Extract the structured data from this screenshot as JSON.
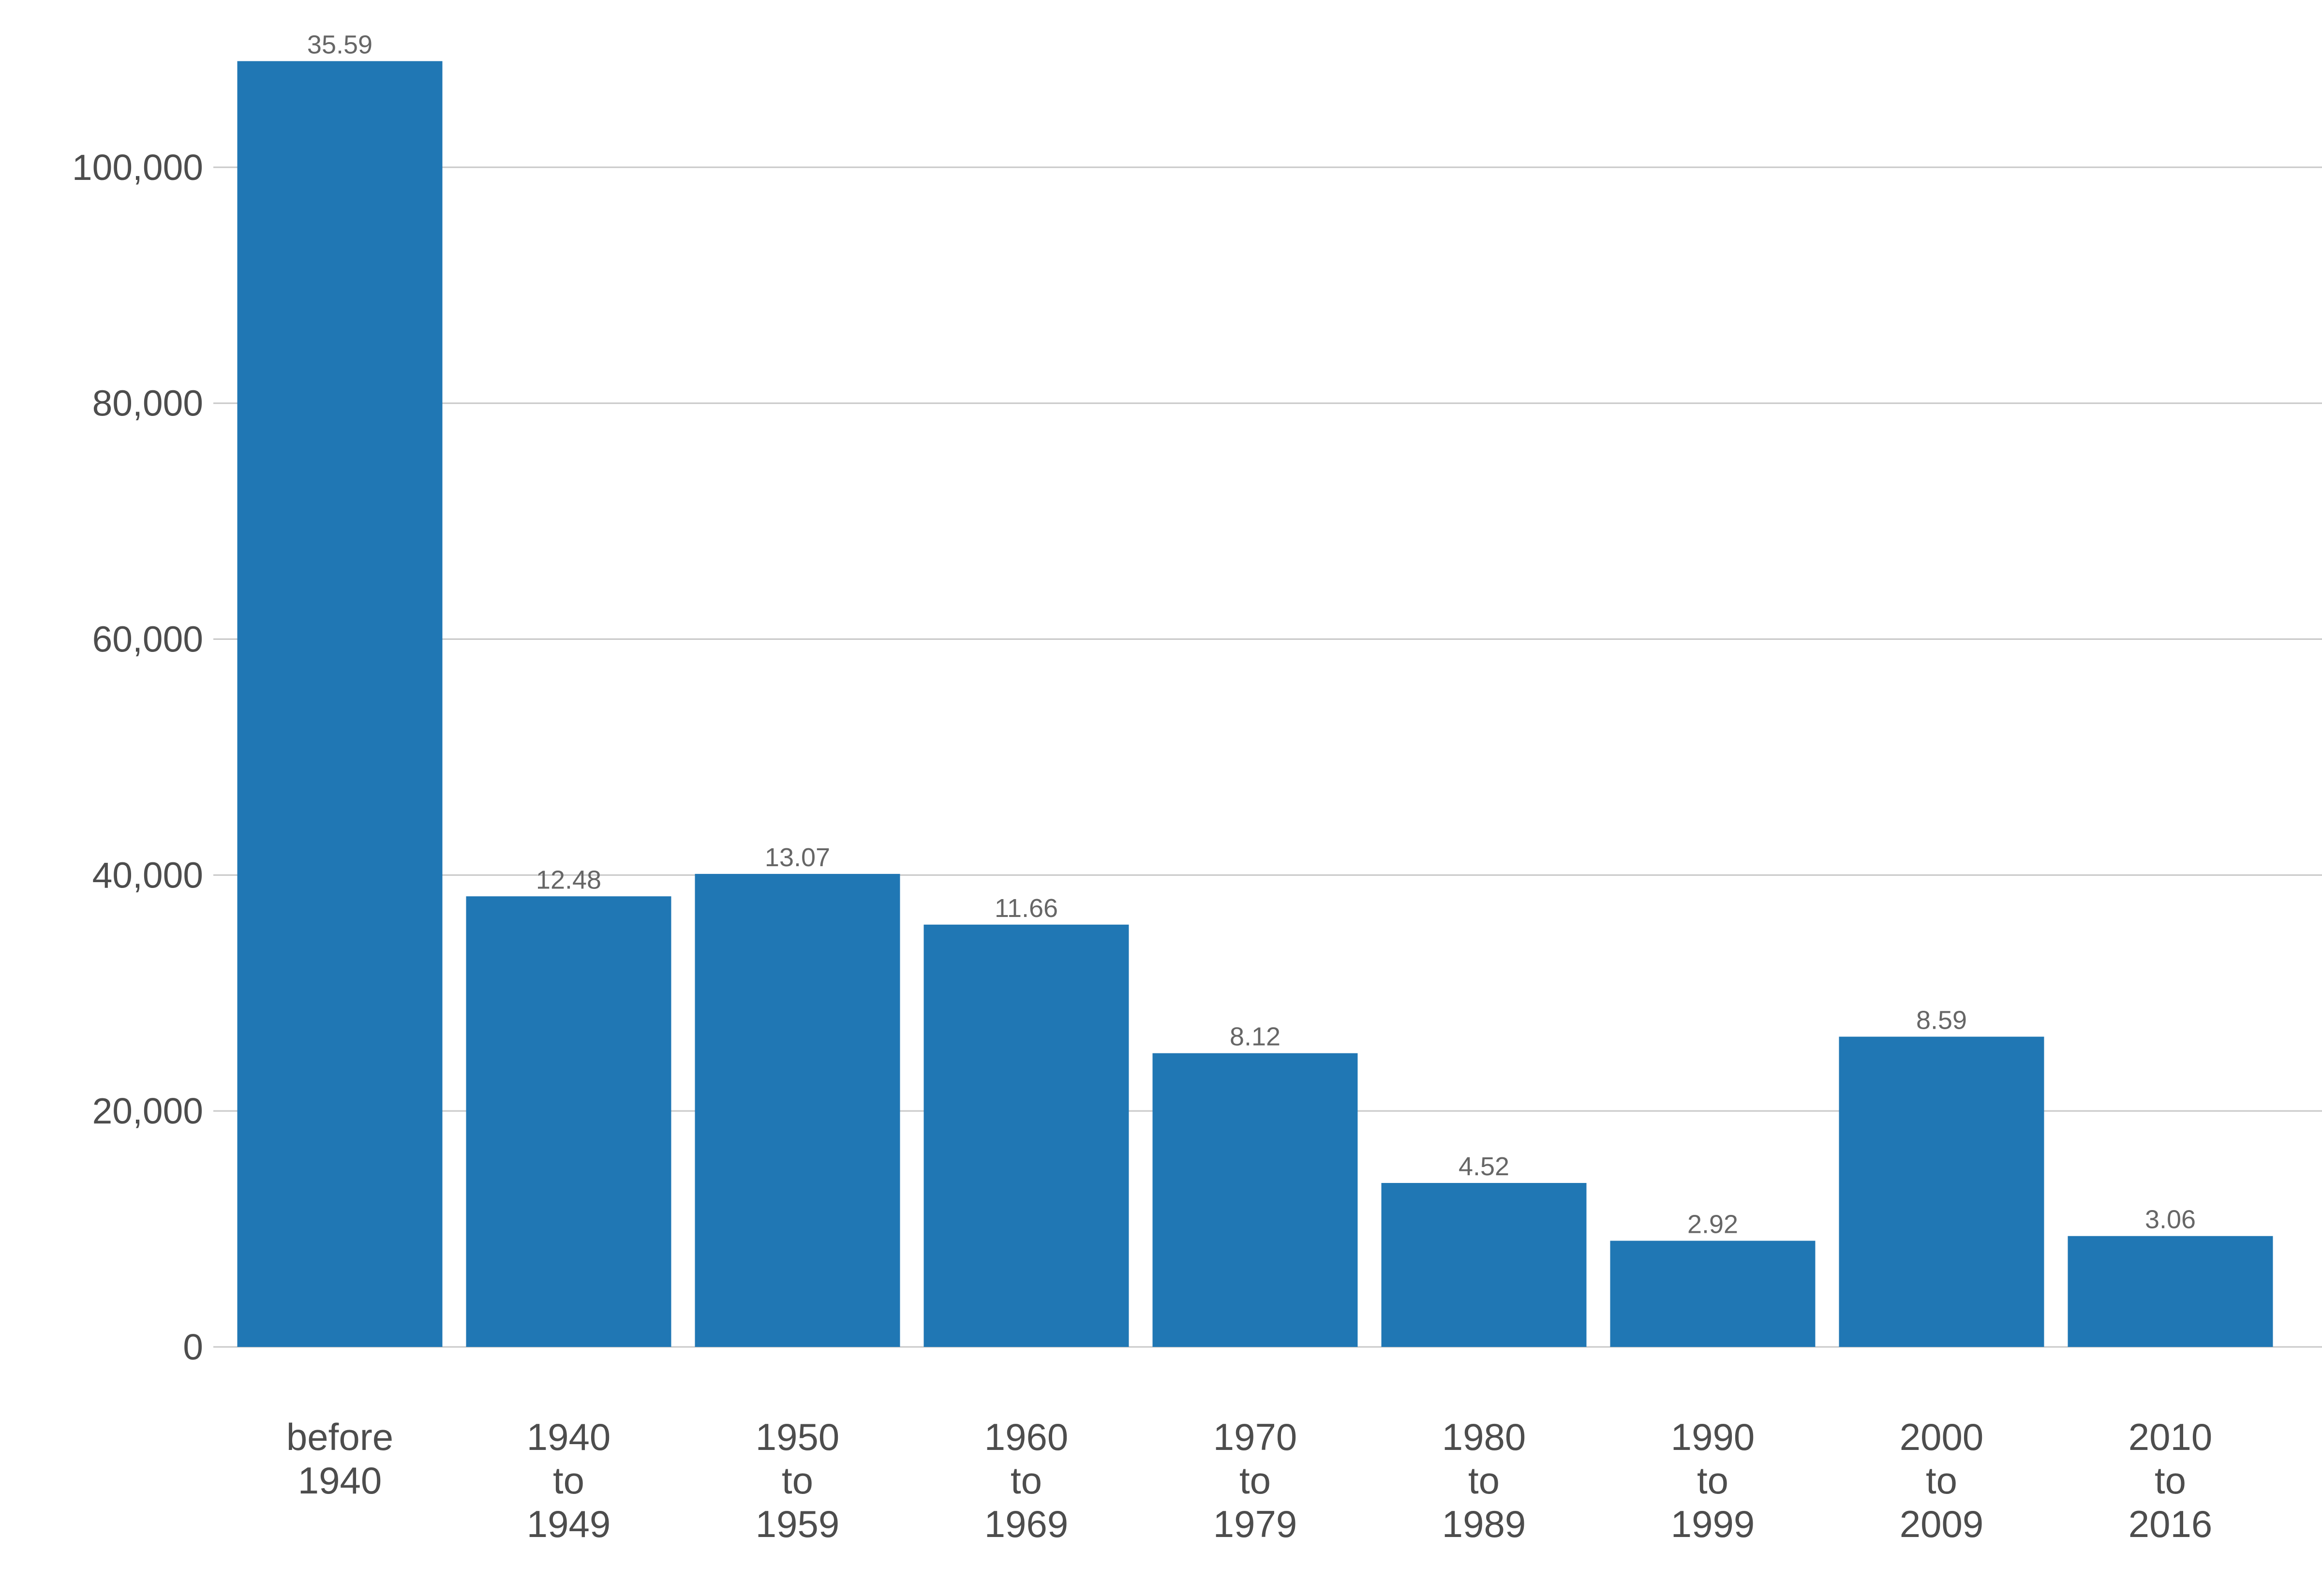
{
  "chart_data": {
    "type": "bar",
    "categories": [
      "before 1940",
      "1940 to 1949",
      "1950 to 1959",
      "1960 to 1969",
      "1970 to 1979",
      "1980 to 1989",
      "1990 to 1999",
      "2000 to 2009",
      "2010 to 2016"
    ],
    "category_label_lines": [
      [
        "before",
        "1940"
      ],
      [
        "1940",
        "to",
        "1949"
      ],
      [
        "1950",
        "to",
        "1959"
      ],
      [
        "1960",
        "to",
        "1969"
      ],
      [
        "1970",
        "to",
        "1979"
      ],
      [
        "1980",
        "to",
        "1989"
      ],
      [
        "1990",
        "to",
        "1999"
      ],
      [
        "2000",
        "to",
        "2009"
      ],
      [
        "2010",
        "to",
        "2016"
      ]
    ],
    "values": [
      109000,
      38200,
      40100,
      35800,
      24900,
      13900,
      9000,
      26300,
      9400
    ],
    "data_labels": [
      "35.59",
      "12.48",
      "13.07",
      "11.66",
      "8.12",
      "4.52",
      "2.92",
      "8.59",
      "3.06"
    ],
    "title": "",
    "xlabel": "",
    "ylabel": "",
    "ylim": [
      0,
      110000
    ],
    "y_ticks": [
      0,
      20000,
      40000,
      60000,
      80000,
      100000
    ],
    "y_tick_labels": [
      "0",
      "20,000",
      "40,000",
      "60,000",
      "80,000",
      "100,000"
    ],
    "grid": "horizontal",
    "legend": "none",
    "bar_color": "#2077b4"
  }
}
